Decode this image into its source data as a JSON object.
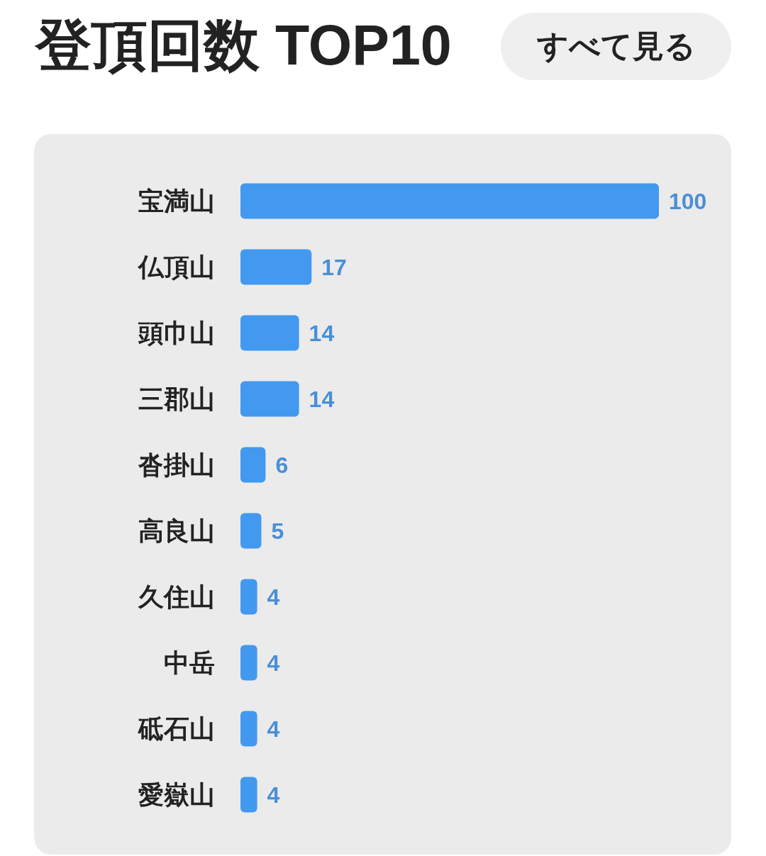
{
  "chart_data": {
    "type": "bar",
    "orientation": "horizontal",
    "title": "登頂回数 TOP10",
    "annotations": [
      "すべて見る"
    ],
    "categories": [
      "宝満山",
      "仏頂山",
      "頭巾山",
      "三郡山",
      "沓掛山",
      "高良山",
      "久住山",
      "中岳",
      "砥石山",
      "愛嶽山"
    ],
    "values": [
      100,
      17,
      14,
      14,
      6,
      5,
      4,
      4,
      4,
      4
    ],
    "color": "#4299ef",
    "data_labels": true
  }
}
